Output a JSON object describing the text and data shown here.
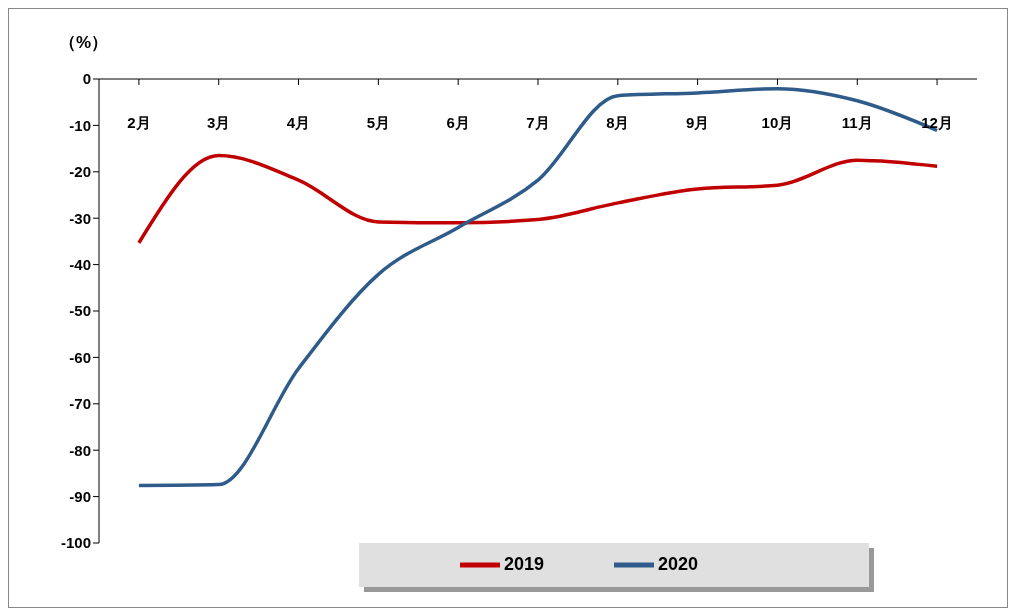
{
  "chart_data": {
    "type": "line",
    "ylabel": "（%）",
    "categories": [
      "2月",
      "3月",
      "4月",
      "5月",
      "6月",
      "7月",
      "8月",
      "9月",
      "10月",
      "11月",
      "12月"
    ],
    "series": [
      {
        "name": "2019",
        "color": "#c00000",
        "values": [
          -35.3,
          -16.5,
          -21.8,
          -30.8,
          -31,
          -30.3,
          -26.7,
          -23.7,
          -22.9,
          -17.5,
          -18.8
        ]
      },
      {
        "name": "2020",
        "color": "#2f5b8a",
        "values": [
          -87.6,
          -87.4,
          -62.4,
          -42.1,
          -32,
          -21.8,
          -3.6,
          -3,
          -2.1,
          -4.7,
          -11.1
        ]
      }
    ],
    "ylim": [
      -100,
      0
    ],
    "yticks": [
      0,
      -10,
      -20,
      -30,
      -40,
      -50,
      -60,
      -70,
      -80,
      -90,
      -100
    ],
    "legend": "bottom"
  }
}
